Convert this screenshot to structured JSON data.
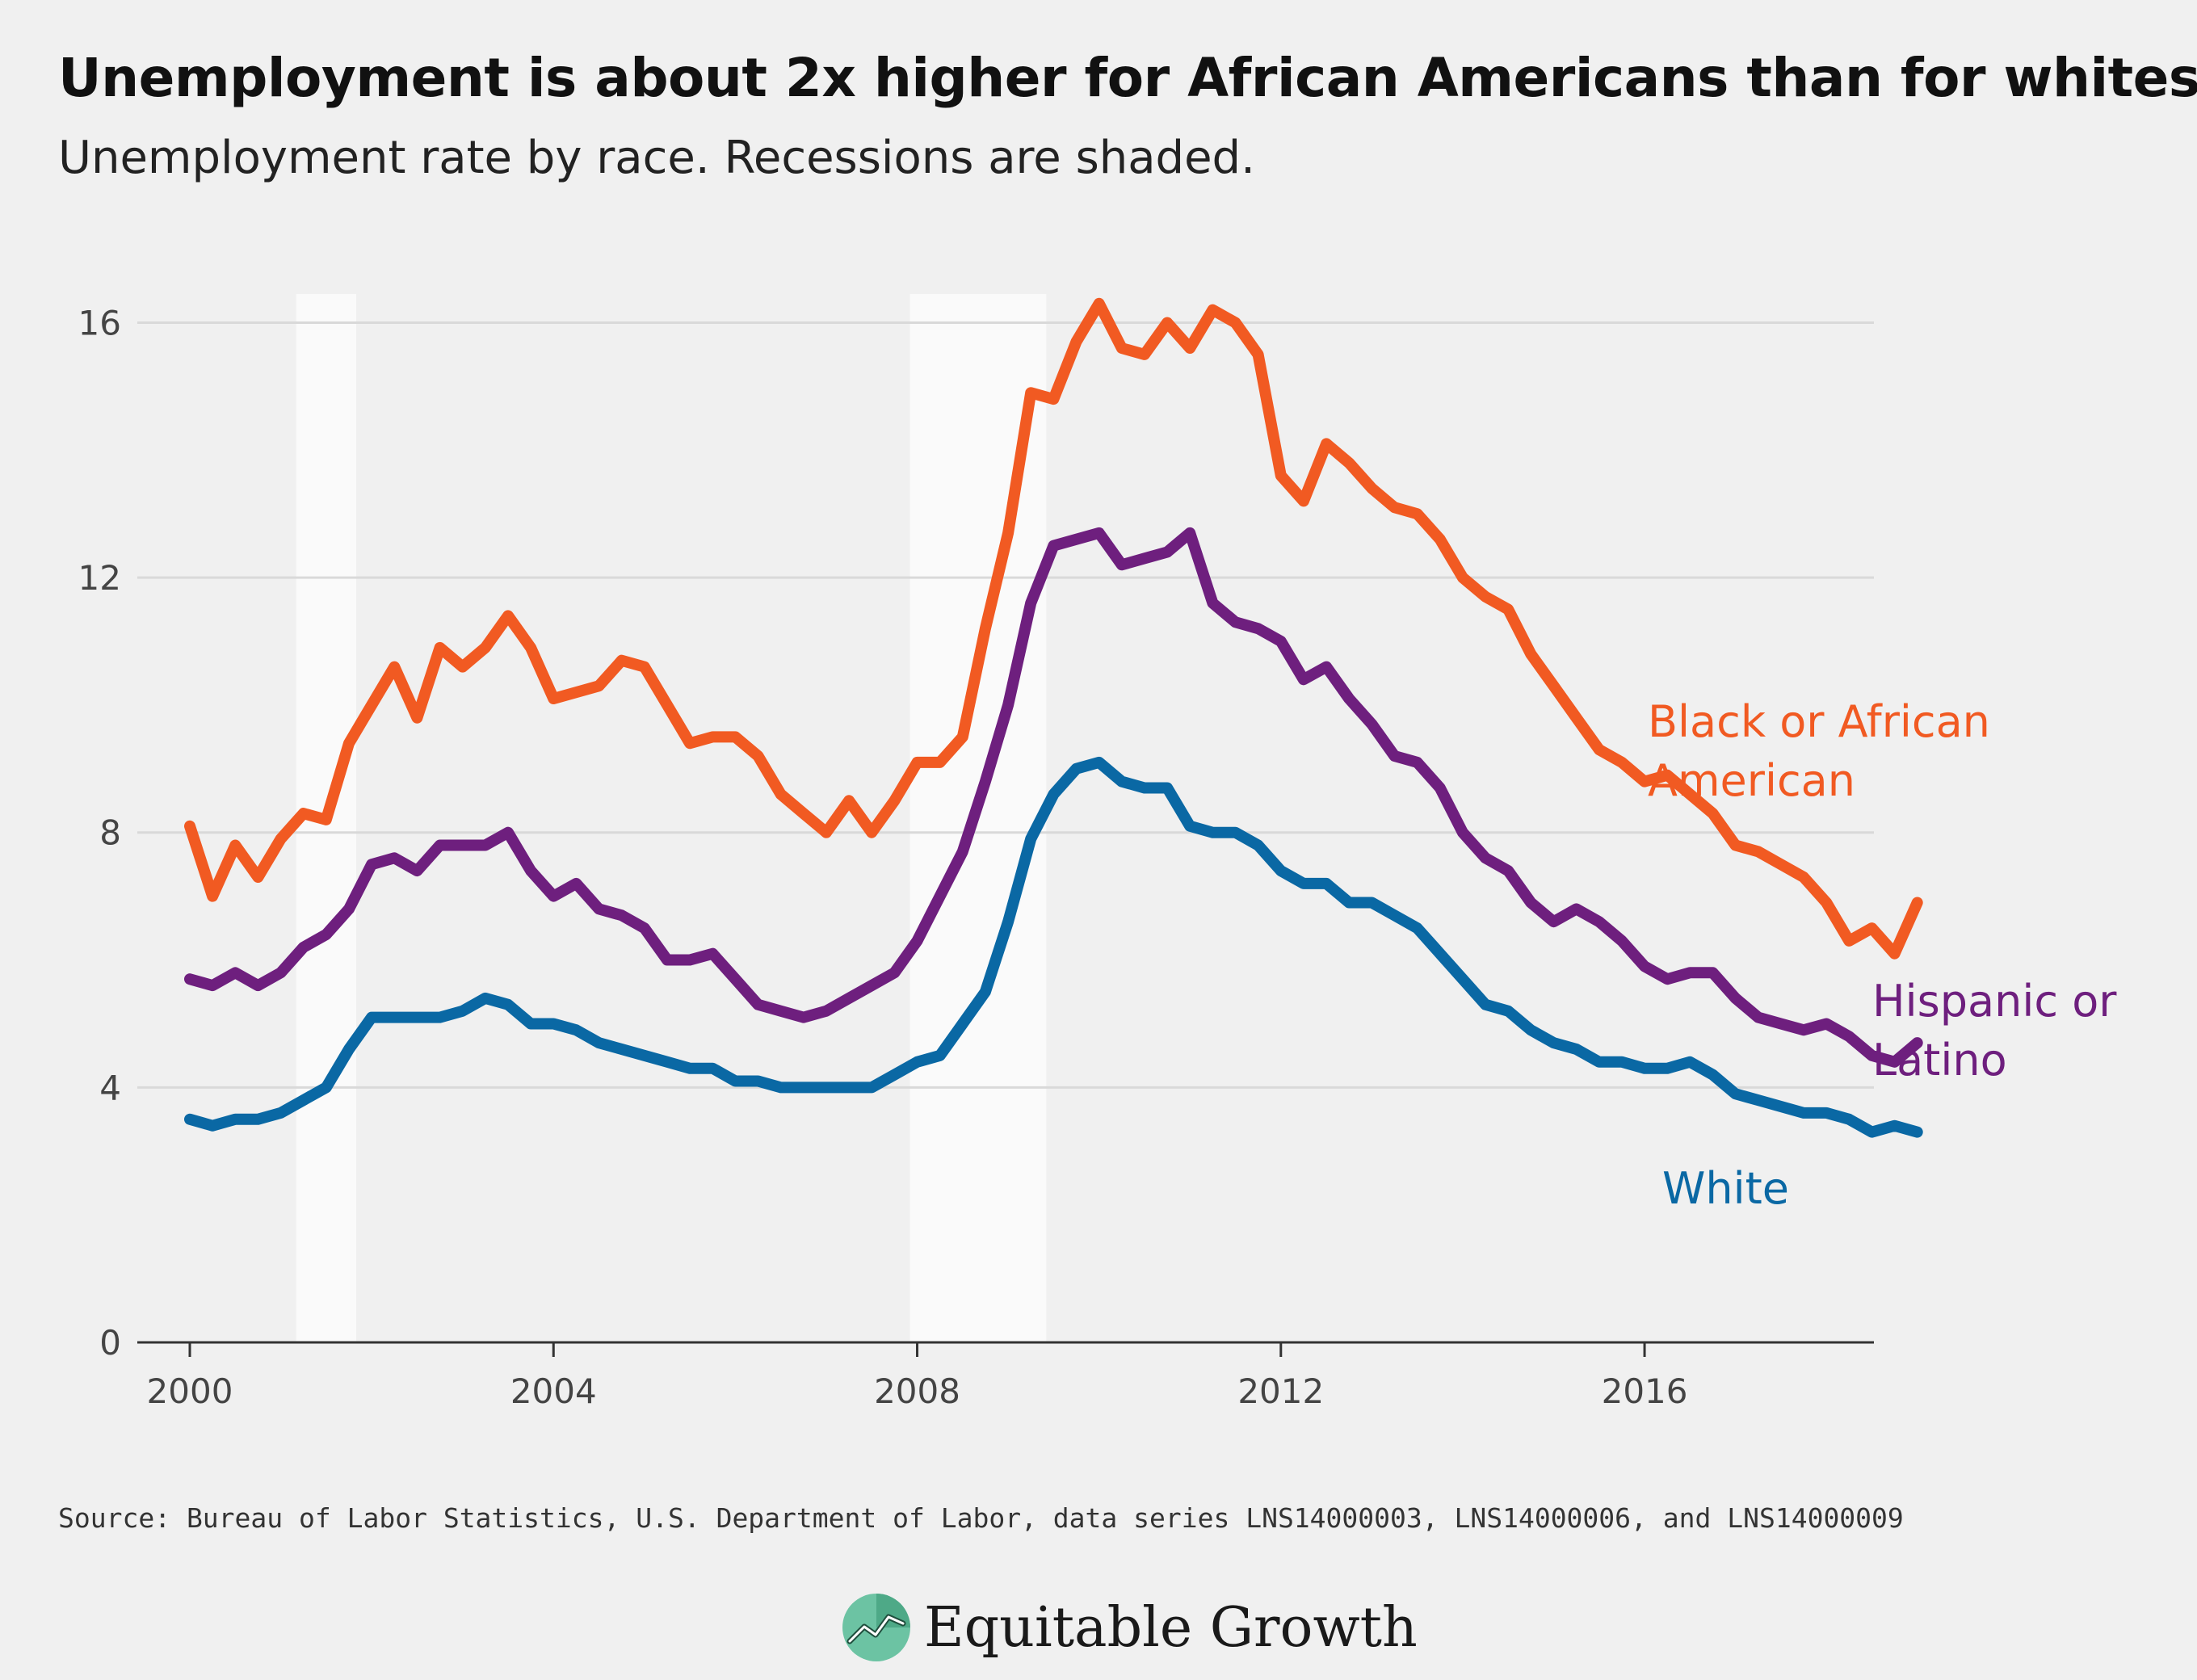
{
  "title": "Unemployment is about 2x higher for African Americans than for whites",
  "subtitle": "Unemployment rate by race. Recessions are shaded.",
  "source": "Source: Bureau of Labor Statistics, U.S. Department of Labor, data series LNS14000003, LNS14000006, and LNS14000009",
  "brand": "Equitable Growth",
  "logo_icon": "growth-chart-logo-icon",
  "chart_data": {
    "type": "line",
    "xlim": [
      2000,
      2019.1
    ],
    "ylim": [
      0,
      16.5
    ],
    "x_ticks": [
      2000,
      2004,
      2008,
      2012,
      2016
    ],
    "x_tick_labels": [
      "2000",
      "2004",
      "2008",
      "2012",
      "2016"
    ],
    "y_ticks": [
      0,
      4,
      8,
      12,
      16
    ],
    "y_tick_labels": [
      "0",
      "4",
      "8",
      "12",
      "16"
    ],
    "grid": true,
    "recessions": [
      [
        2001.17,
        2001.83
      ],
      [
        2007.92,
        2009.42
      ]
    ],
    "series": [
      {
        "name": "Black or African American",
        "label_lines": [
          "Black or African",
          "American"
        ],
        "color": "#f15a22",
        "x": [
          2000.0,
          2000.25,
          2000.5,
          2000.75,
          2001.0,
          2001.25,
          2001.5,
          2001.75,
          2002.0,
          2002.25,
          2002.5,
          2002.75,
          2003.0,
          2003.25,
          2003.5,
          2003.75,
          2004.0,
          2004.25,
          2004.5,
          2004.75,
          2005.0,
          2005.25,
          2005.5,
          2005.75,
          2006.0,
          2006.25,
          2006.5,
          2006.75,
          2007.0,
          2007.25,
          2007.5,
          2007.75,
          2008.0,
          2008.25,
          2008.5,
          2008.75,
          2009.0,
          2009.25,
          2009.5,
          2009.75,
          2010.0,
          2010.25,
          2010.5,
          2010.75,
          2011.0,
          2011.25,
          2011.5,
          2011.75,
          2012.0,
          2012.25,
          2012.5,
          2012.75,
          2013.0,
          2013.25,
          2013.5,
          2013.75,
          2014.0,
          2014.25,
          2014.5,
          2014.75,
          2015.0,
          2015.25,
          2015.5,
          2015.75,
          2016.0,
          2016.25,
          2016.5,
          2016.75,
          2017.0,
          2017.25,
          2017.5,
          2017.75,
          2018.0,
          2018.25,
          2018.5,
          2018.75,
          2019.0
        ],
        "values": [
          8.1,
          7.0,
          7.8,
          7.3,
          7.9,
          8.3,
          8.2,
          9.4,
          10.0,
          10.6,
          9.8,
          10.9,
          10.6,
          10.9,
          11.4,
          10.9,
          10.1,
          10.2,
          10.3,
          10.7,
          10.6,
          10.0,
          9.4,
          9.5,
          9.5,
          9.2,
          8.6,
          8.3,
          8.0,
          8.5,
          8.0,
          8.5,
          9.1,
          9.1,
          9.5,
          11.2,
          12.7,
          14.9,
          14.8,
          15.7,
          16.3,
          15.6,
          15.5,
          16.0,
          15.6,
          16.2,
          16.0,
          15.5,
          13.6,
          13.2,
          14.1,
          13.8,
          13.4,
          13.1,
          13.0,
          12.6,
          12.0,
          11.7,
          11.5,
          10.8,
          10.3,
          9.8,
          9.3,
          9.1,
          8.8,
          8.9,
          8.6,
          8.3,
          7.8,
          7.7,
          7.5,
          7.3,
          6.9,
          6.3,
          6.5,
          6.1,
          6.9
        ]
      },
      {
        "name": "Hispanic or Latino",
        "label_lines": [
          "Hispanic or",
          "Latino"
        ],
        "color": "#6e1f7e",
        "x": [
          2000.0,
          2000.25,
          2000.5,
          2000.75,
          2001.0,
          2001.25,
          2001.5,
          2001.75,
          2002.0,
          2002.25,
          2002.5,
          2002.75,
          2003.0,
          2003.25,
          2003.5,
          2003.75,
          2004.0,
          2004.25,
          2004.5,
          2004.75,
          2005.0,
          2005.25,
          2005.5,
          2005.75,
          2006.0,
          2006.25,
          2006.5,
          2006.75,
          2007.0,
          2007.25,
          2007.5,
          2007.75,
          2008.0,
          2008.25,
          2008.5,
          2008.75,
          2009.0,
          2009.25,
          2009.5,
          2009.75,
          2010.0,
          2010.25,
          2010.5,
          2010.75,
          2011.0,
          2011.25,
          2011.5,
          2011.75,
          2012.0,
          2012.25,
          2012.5,
          2012.75,
          2013.0,
          2013.25,
          2013.5,
          2013.75,
          2014.0,
          2014.25,
          2014.5,
          2014.75,
          2015.0,
          2015.25,
          2015.5,
          2015.75,
          2016.0,
          2016.25,
          2016.5,
          2016.75,
          2017.0,
          2017.25,
          2017.5,
          2017.75,
          2018.0,
          2018.25,
          2018.5,
          2018.75,
          2019.0
        ],
        "values": [
          5.7,
          5.6,
          5.8,
          5.6,
          5.8,
          6.2,
          6.4,
          6.8,
          7.5,
          7.6,
          7.4,
          7.8,
          7.8,
          7.8,
          8.0,
          7.4,
          7.0,
          7.2,
          6.8,
          6.7,
          6.5,
          6.0,
          6.0,
          6.1,
          5.7,
          5.3,
          5.2,
          5.1,
          5.2,
          5.4,
          5.6,
          5.8,
          6.3,
          7.0,
          7.7,
          8.8,
          10.0,
          11.6,
          12.5,
          12.6,
          12.7,
          12.2,
          12.3,
          12.4,
          12.7,
          11.6,
          11.3,
          11.2,
          11.0,
          10.4,
          10.6,
          10.1,
          9.7,
          9.2,
          9.1,
          8.7,
          8.0,
          7.6,
          7.4,
          6.9,
          6.6,
          6.8,
          6.6,
          6.3,
          5.9,
          5.7,
          5.8,
          5.8,
          5.4,
          5.1,
          5.0,
          4.9,
          5.0,
          4.8,
          4.5,
          4.4,
          4.7
        ]
      },
      {
        "name": "White",
        "label_lines": [
          "White"
        ],
        "color": "#0a68a4",
        "x": [
          2000.0,
          2000.25,
          2000.5,
          2000.75,
          2001.0,
          2001.25,
          2001.5,
          2001.75,
          2002.0,
          2002.25,
          2002.5,
          2002.75,
          2003.0,
          2003.25,
          2003.5,
          2003.75,
          2004.0,
          2004.25,
          2004.5,
          2004.75,
          2005.0,
          2005.25,
          2005.5,
          2005.75,
          2006.0,
          2006.25,
          2006.5,
          2006.75,
          2007.0,
          2007.25,
          2007.5,
          2007.75,
          2008.0,
          2008.25,
          2008.5,
          2008.75,
          2009.0,
          2009.25,
          2009.5,
          2009.75,
          2010.0,
          2010.25,
          2010.5,
          2010.75,
          2011.0,
          2011.25,
          2011.5,
          2011.75,
          2012.0,
          2012.25,
          2012.5,
          2012.75,
          2013.0,
          2013.25,
          2013.5,
          2013.75,
          2014.0,
          2014.25,
          2014.5,
          2014.75,
          2015.0,
          2015.25,
          2015.5,
          2015.75,
          2016.0,
          2016.25,
          2016.5,
          2016.75,
          2017.0,
          2017.25,
          2017.5,
          2017.75,
          2018.0,
          2018.25,
          2018.5,
          2018.75,
          2019.0
        ],
        "values": [
          3.5,
          3.4,
          3.5,
          3.5,
          3.6,
          3.8,
          4.0,
          4.6,
          5.1,
          5.1,
          5.1,
          5.1,
          5.2,
          5.4,
          5.3,
          5.0,
          5.0,
          4.9,
          4.7,
          4.6,
          4.5,
          4.4,
          4.3,
          4.3,
          4.1,
          4.1,
          4.0,
          4.0,
          4.0,
          4.0,
          4.0,
          4.2,
          4.4,
          4.5,
          5.0,
          5.5,
          6.6,
          7.9,
          8.6,
          9.0,
          9.1,
          8.8,
          8.7,
          8.7,
          8.1,
          8.0,
          8.0,
          7.8,
          7.4,
          7.2,
          7.2,
          6.9,
          6.9,
          6.7,
          6.5,
          6.1,
          5.7,
          5.3,
          5.2,
          4.9,
          4.7,
          4.6,
          4.4,
          4.4,
          4.3,
          4.3,
          4.4,
          4.2,
          3.9,
          3.8,
          3.7,
          3.6,
          3.6,
          3.5,
          3.3,
          3.4,
          3.3
        ]
      }
    ]
  }
}
